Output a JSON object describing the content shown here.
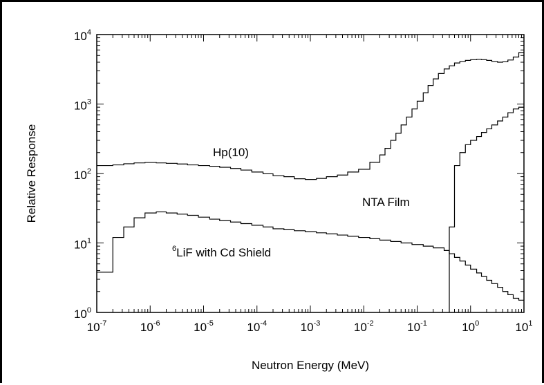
{
  "chart_data": {
    "type": "line",
    "title": "",
    "xlabel": "Neutron Energy (MeV)",
    "ylabel": "Relative Response",
    "xscale": "log",
    "yscale": "log",
    "xlim": [
      1e-07,
      10
    ],
    "ylim": [
      1,
      10000
    ],
    "line_style": "step",
    "grid": false,
    "x_ticks": [
      {
        "base": "10",
        "exp": "-7"
      },
      {
        "base": "10",
        "exp": "-6"
      },
      {
        "base": "10",
        "exp": "-5"
      },
      {
        "base": "10",
        "exp": "-4"
      },
      {
        "base": "10",
        "exp": "-3"
      },
      {
        "base": "10",
        "exp": "-2"
      },
      {
        "base": "10",
        "exp": "-1"
      },
      {
        "base": "10",
        "exp": "0"
      },
      {
        "base": "10",
        "exp": "1"
      }
    ],
    "y_ticks": [
      {
        "base": "10",
        "exp": "0"
      },
      {
        "base": "10",
        "exp": "1"
      },
      {
        "base": "10",
        "exp": "2"
      },
      {
        "base": "10",
        "exp": "3"
      },
      {
        "base": "10",
        "exp": "4"
      }
    ],
    "series": [
      {
        "name": "Hp(10)",
        "x": [
          1e-07,
          2e-07,
          3.2e-07,
          5e-07,
          8e-07,
          1.3e-06,
          2e-06,
          3.2e-06,
          5e-06,
          8e-06,
          1.3e-05,
          2e-05,
          3.2e-05,
          5e-05,
          8e-05,
          0.00013,
          0.0002,
          0.00032,
          0.0005,
          0.0008,
          0.0013,
          0.002,
          0.0032,
          0.005,
          0.008,
          0.013,
          0.02,
          0.025,
          0.032,
          0.04,
          0.05,
          0.063,
          0.08,
          0.1,
          0.13,
          0.16,
          0.2,
          0.25,
          0.32,
          0.4,
          0.5,
          0.63,
          0.8,
          1.0,
          1.3,
          1.6,
          2.0,
          2.5,
          3.2,
          4.0,
          5.0,
          6.3,
          8.0
        ],
        "y": [
          130,
          133,
          138,
          142,
          144,
          142,
          140,
          137,
          133,
          130,
          127,
          123,
          118,
          112,
          105,
          99,
          93,
          90,
          84,
          82,
          85,
          90,
          95,
          105,
          115,
          145,
          185,
          230,
          300,
          380,
          500,
          650,
          850,
          1100,
          1450,
          1850,
          2300,
          2750,
          3200,
          3550,
          3900,
          4100,
          4250,
          4350,
          4400,
          4350,
          4250,
          4100,
          4000,
          4050,
          4300,
          4750,
          5500
        ]
      },
      {
        "name": "6LiF with Cd Shield",
        "x": [
          1e-07,
          2e-07,
          3.2e-07,
          5e-07,
          8e-07,
          1.3e-06,
          2e-06,
          3.2e-06,
          5e-06,
          8e-06,
          1.3e-05,
          2e-05,
          3.2e-05,
          5e-05,
          8e-05,
          0.00013,
          0.0002,
          0.00032,
          0.0005,
          0.0008,
          0.0013,
          0.002,
          0.0032,
          0.005,
          0.008,
          0.013,
          0.02,
          0.032,
          0.05,
          0.08,
          0.13,
          0.2,
          0.32,
          0.4,
          0.5,
          0.63,
          0.8,
          1.0,
          1.3,
          1.6,
          2.0,
          2.5,
          3.2,
          4.0,
          5.0,
          6.3,
          8.0
        ],
        "y": [
          3.8,
          12,
          17,
          23,
          27,
          28,
          27,
          26,
          25,
          23.5,
          22,
          21,
          20,
          19,
          18,
          17,
          16,
          15.5,
          15,
          14.5,
          14,
          13.5,
          13,
          12.5,
          12,
          11.5,
          11,
          10.5,
          10,
          9.5,
          9,
          8.5,
          7.8,
          7.0,
          6.2,
          5.5,
          4.8,
          4.2,
          3.7,
          3.3,
          2.9,
          2.6,
          2.3,
          2.0,
          1.8,
          1.6,
          1.5
        ]
      },
      {
        "name": "NTA Film",
        "x": [
          0.4,
          0.5,
          0.63,
          0.8,
          1.0,
          1.3,
          1.6,
          2.0,
          2.5,
          3.2,
          4.0,
          5.0,
          6.3,
          8.0
        ],
        "y": [
          17,
          130,
          200,
          260,
          300,
          340,
          390,
          440,
          500,
          570,
          650,
          750,
          850,
          900
        ]
      }
    ],
    "annotations": {
      "hp10": "Hp(10)",
      "nta": "NTA Film",
      "lif_sup": "6",
      "lif_text": "LiF with Cd Shield"
    }
  }
}
